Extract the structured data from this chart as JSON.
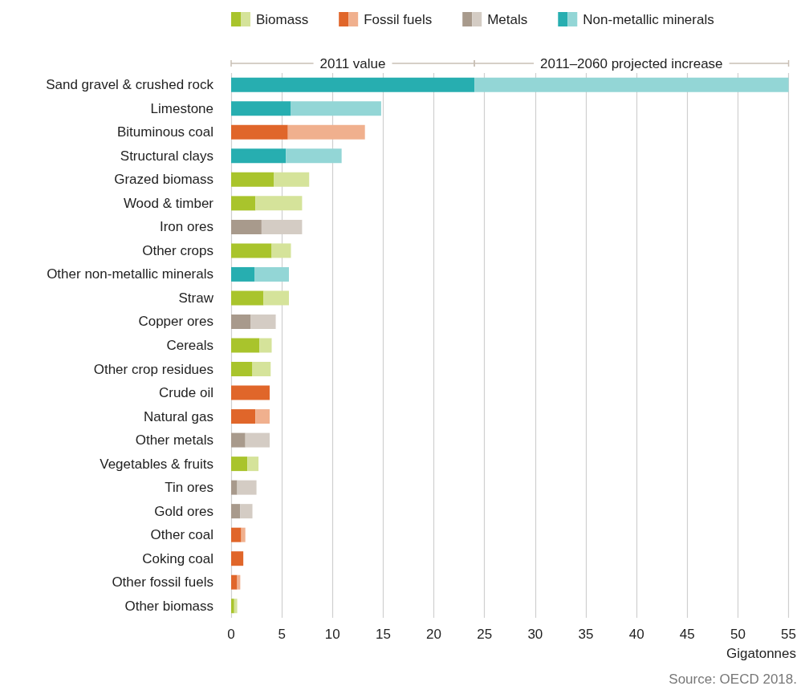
{
  "chart_data": {
    "type": "bar",
    "orientation": "horizontal",
    "stacked": true,
    "xlabel": "Gigatonnes",
    "categories": [
      "Sand gravel & crushed rock",
      "Limestone",
      "Bituminous coal",
      "Structural clays",
      "Grazed biomass",
      "Wood & timber",
      "Iron ores",
      "Other crops",
      "Other non-metallic minerals",
      "Straw",
      "Copper ores",
      "Cereals",
      "Other crop residues",
      "Crude oil",
      "Natural gas",
      "Other metals",
      "Vegetables & fruits",
      "Tin ores",
      "Gold ores",
      "Other coal",
      "Coking coal",
      "Other fossil fuels",
      "Other biomass"
    ],
    "series": [
      {
        "name": "Biomass",
        "color": "#a9c42c",
        "values": [
          null,
          null,
          null,
          null,
          4.2,
          2.4,
          null,
          4.0,
          null,
          3.2,
          null,
          2.8,
          2.1,
          null,
          null,
          null,
          1.6,
          null,
          null,
          null,
          null,
          null,
          0.3
        ]
      },
      {
        "color": "#d5e39a",
        "values": [
          null,
          null,
          null,
          null,
          3.5,
          4.6,
          null,
          1.9,
          null,
          2.5,
          null,
          1.2,
          1.8,
          null,
          null,
          null,
          1.1,
          null,
          null,
          null,
          null,
          null,
          0.3
        ]
      },
      {
        "name": "Fossil fuels",
        "color": "#e0662a",
        "values": [
          null,
          null,
          5.6,
          null,
          null,
          null,
          null,
          null,
          null,
          null,
          null,
          null,
          null,
          3.8,
          2.4,
          null,
          null,
          null,
          null,
          1.0,
          1.2,
          0.6,
          null
        ]
      },
      {
        "color": "#f0b08e",
        "values": [
          null,
          null,
          7.6,
          null,
          null,
          null,
          null,
          null,
          null,
          null,
          null,
          null,
          null,
          null,
          1.4,
          null,
          null,
          null,
          null,
          0.4,
          null,
          0.3,
          null
        ]
      },
      {
        "name": "Metals",
        "color": "#a89a8c",
        "values": [
          null,
          null,
          null,
          null,
          null,
          null,
          3.0,
          null,
          null,
          null,
          1.9,
          null,
          null,
          null,
          null,
          1.4,
          null,
          0.6,
          0.9,
          null,
          null,
          null,
          null
        ]
      },
      {
        "color": "#d4ccc4",
        "values": [
          null,
          null,
          null,
          null,
          null,
          null,
          4.0,
          null,
          null,
          null,
          2.5,
          null,
          null,
          null,
          null,
          2.4,
          null,
          1.9,
          1.2,
          null,
          null,
          null,
          null
        ]
      },
      {
        "name": "Non-metallic minerals",
        "color": "#27aeb0",
        "values": [
          24.0,
          5.9,
          null,
          5.4,
          null,
          null,
          null,
          null,
          2.3,
          null,
          null,
          null,
          null,
          null,
          null,
          null,
          null,
          null,
          null,
          null,
          null,
          null,
          null
        ]
      },
      {
        "color": "#93d6d6",
        "values": [
          31.0,
          8.9,
          null,
          5.5,
          null,
          null,
          null,
          null,
          3.4,
          null,
          null,
          null,
          null,
          null,
          null,
          null,
          null,
          null,
          null,
          null,
          null,
          null,
          null
        ]
      }
    ],
    "xlim": [
      0,
      55
    ],
    "xticks": [
      0,
      5,
      10,
      15,
      20,
      25,
      30,
      35,
      40,
      45,
      50,
      55
    ],
    "grid": "x",
    "legend": "top left",
    "annotations": [
      "2011 value",
      "2011–2060 projected increase",
      "Source: OECD 2018."
    ]
  }
}
